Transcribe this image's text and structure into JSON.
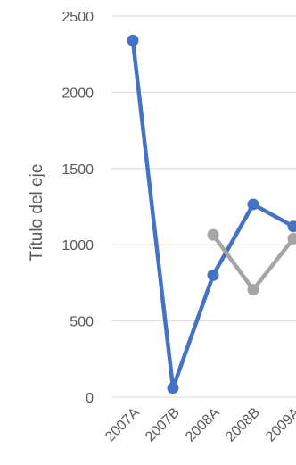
{
  "chart_data": {
    "type": "line",
    "title": "",
    "xlabel": "",
    "ylabel": "Título del eje",
    "categories": [
      "2007A",
      "2007B",
      "2008A",
      "2008B",
      "2009A"
    ],
    "ylim": [
      0,
      2500
    ],
    "yticks": [
      0,
      500,
      1000,
      1500,
      2000,
      2500
    ],
    "grid": true,
    "series": [
      {
        "color": "#4472c4",
        "values": [
          2340,
          60,
          800,
          1265,
          1120
        ]
      },
      {
        "color": "#a5a5a5",
        "values": [
          null,
          null,
          1065,
          705,
          1040
        ]
      }
    ]
  }
}
